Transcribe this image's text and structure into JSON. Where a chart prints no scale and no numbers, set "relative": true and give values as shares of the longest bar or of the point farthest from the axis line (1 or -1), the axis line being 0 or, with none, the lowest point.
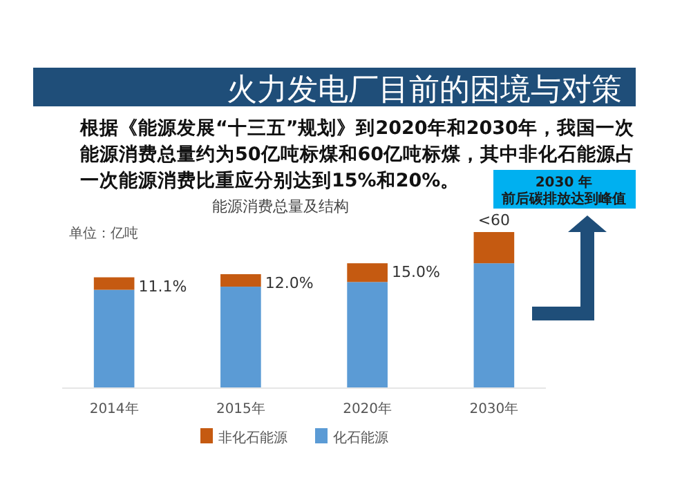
{
  "chart_data": {
    "type": "bar",
    "title": "能源消费总量及结构",
    "subtitle": "根据《能源发展“十三五”规划》到2020年和2030年，我国一次能源消费总量约为50亿吨标煤和60亿吨标煤，其中非化石能源占一次能源消费比重应分别达到15%和20%。",
    "annotations": [
      "火力发电厂目前的困境与对策",
      "单位：亿吨",
      "2030 年",
      "前后碳排放达到峰值",
      {
        "text": "11.1%",
        "x": "2014年",
        "y": 0.71
      },
      {
        "text": "12.0%",
        "x": "2015年",
        "y": 0.73
      },
      {
        "text": "15.0%",
        "x": "2020年",
        "y": 0.8
      }
    ],
    "categories": [
      "2014年",
      "2015年",
      "2020年",
      "2030年"
    ],
    "stacked": true,
    "relative": true,
    "series": [
      {
        "name": "化石能源",
        "color": "#5b9bd5",
        "values": [
          0.63,
          0.65,
          0.68,
          0.8
        ]
      },
      {
        "name": "非化石能源",
        "color": "#c55a11",
        "values": [
          0.08,
          0.08,
          0.12,
          0.2
        ]
      }
    ],
    "totals": [
      null,
      null,
      null,
      "<60"
    ],
    "legend": "bottom",
    "grid": false
  }
}
